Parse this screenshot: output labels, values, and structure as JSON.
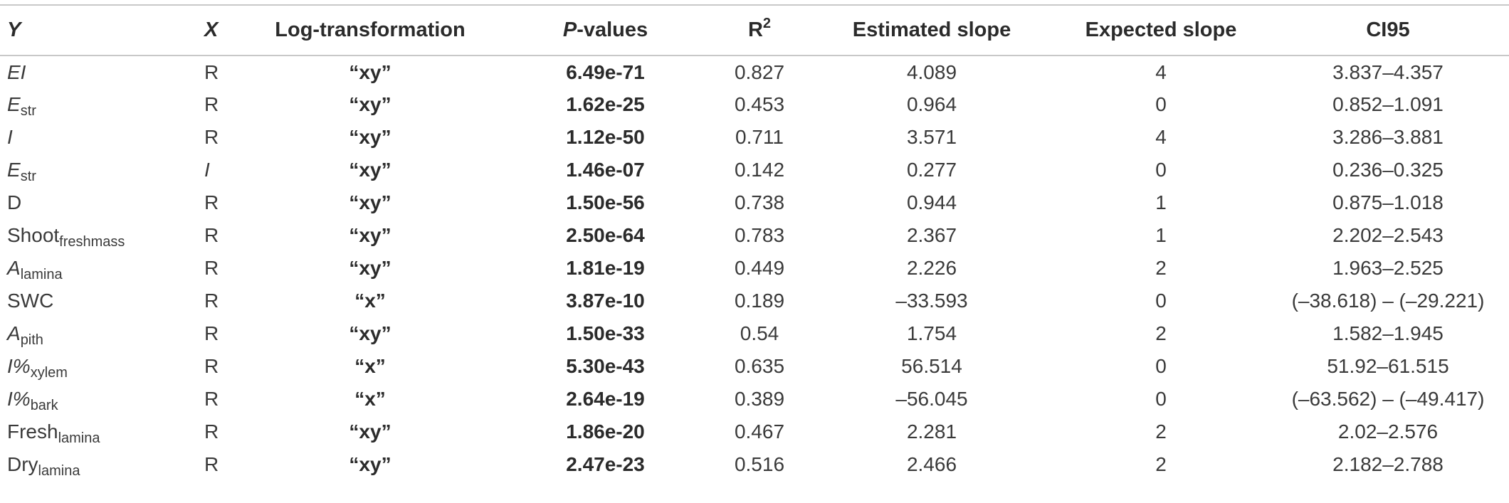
{
  "headers": {
    "y": "Y",
    "x": "X",
    "log": "Log-transformation",
    "p_italic": "P",
    "p_rest": "-values",
    "r2_base": "R",
    "r2_sup": "2",
    "est": "Estimated slope",
    "exp": "Expected slope",
    "ci": "CI95"
  },
  "rows": [
    {
      "y": "EI",
      "y_sub": "",
      "y_italic": true,
      "x": "R",
      "x_italic": false,
      "log": "“xy”",
      "p": "6.49e-71",
      "r2": "0.827",
      "est": "4.089",
      "exp": "4",
      "ci": "3.837–4.357"
    },
    {
      "y": "E",
      "y_sub": "str",
      "y_italic": true,
      "x": "R",
      "x_italic": false,
      "log": "“xy”",
      "p": "1.62e-25",
      "r2": "0.453",
      "est": "0.964",
      "exp": "0",
      "ci": "0.852–1.091"
    },
    {
      "y": "I",
      "y_sub": "",
      "y_italic": true,
      "x": "R",
      "x_italic": false,
      "log": "“xy”",
      "p": "1.12e-50",
      "r2": "0.711",
      "est": "3.571",
      "exp": "4",
      "ci": "3.286–3.881"
    },
    {
      "y": "E",
      "y_sub": "str",
      "y_italic": true,
      "x": "I",
      "x_italic": true,
      "log": "“xy”",
      "p": "1.46e-07",
      "r2": "0.142",
      "est": "0.277",
      "exp": "0",
      "ci": "0.236–0.325"
    },
    {
      "y": "D",
      "y_sub": "",
      "y_italic": false,
      "x": "R",
      "x_italic": false,
      "log": "“xy”",
      "p": "1.50e-56",
      "r2": "0.738",
      "est": "0.944",
      "exp": "1",
      "ci": "0.875–1.018"
    },
    {
      "y": "Shoot",
      "y_sub": "freshmass",
      "y_italic": false,
      "x": "R",
      "x_italic": false,
      "log": "“xy”",
      "p": "2.50e-64",
      "r2": "0.783",
      "est": "2.367",
      "exp": "1",
      "ci": "2.202–2.543"
    },
    {
      "y": "A",
      "y_sub": "lamina",
      "y_italic": true,
      "x": "R",
      "x_italic": false,
      "log": "“xy”",
      "p": "1.81e-19",
      "r2": "0.449",
      "est": "2.226",
      "exp": "2",
      "ci": "1.963–2.525"
    },
    {
      "y": "SWC",
      "y_sub": "",
      "y_italic": false,
      "x": "R",
      "x_italic": false,
      "log": "“x”",
      "p": "3.87e-10",
      "r2": "0.189",
      "est": "–33.593",
      "exp": "0",
      "ci": "(–38.618) – (–29.221)"
    },
    {
      "y": "A",
      "y_sub": "pith",
      "y_italic": true,
      "x": "R",
      "x_italic": false,
      "log": "“xy”",
      "p": "1.50e-33",
      "r2": "0.54",
      "est": "1.754",
      "exp": "2",
      "ci": "1.582–1.945"
    },
    {
      "y": "I%",
      "y_sub": "xylem",
      "y_italic": true,
      "x": "R",
      "x_italic": false,
      "log": "“x”",
      "p": "5.30e-43",
      "r2": "0.635",
      "est": "56.514",
      "exp": "0",
      "ci": "51.92–61.515"
    },
    {
      "y": "I%",
      "y_sub": "bark",
      "y_italic": true,
      "x": "R",
      "x_italic": false,
      "log": "“x”",
      "p": "2.64e-19",
      "r2": "0.389",
      "est": "–56.045",
      "exp": "0",
      "ci": "(–63.562) – (–49.417)"
    },
    {
      "y": "Fresh",
      "y_sub": "lamina",
      "y_italic": false,
      "x": "R",
      "x_italic": false,
      "log": "“xy”",
      "p": "1.86e-20",
      "r2": "0.467",
      "est": "2.281",
      "exp": "2",
      "ci": "2.02–2.576"
    },
    {
      "y": "Dry",
      "y_sub": "lamina",
      "y_italic": false,
      "x": "R",
      "x_italic": false,
      "log": "“xy”",
      "p": "2.47e-23",
      "r2": "0.516",
      "est": "2.466",
      "exp": "2",
      "ci": "2.182–2.788"
    }
  ]
}
